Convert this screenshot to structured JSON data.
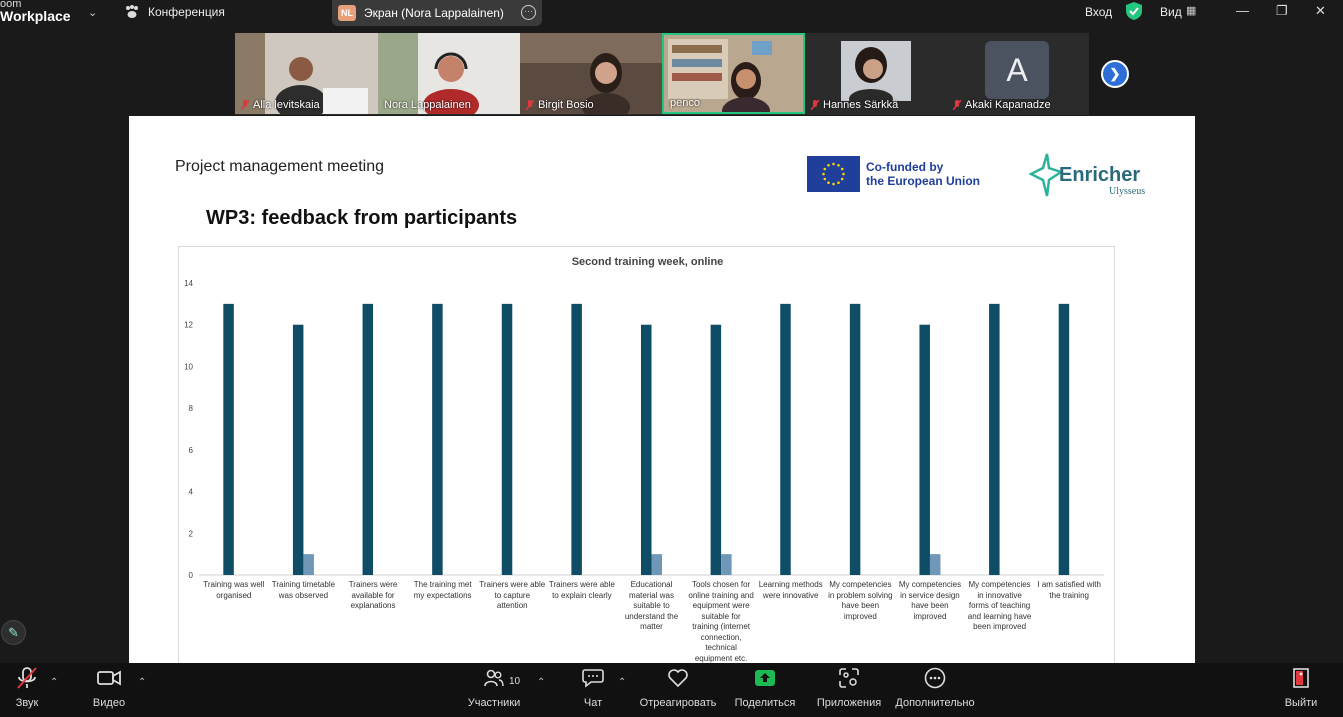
{
  "app": {
    "brand_line1": "oom",
    "brand_line2": "Workplace"
  },
  "topbar": {
    "meeting_label": "Конференция",
    "share_badge": "NL",
    "share_label": "Экран (Nora Lappalainen)",
    "login_label": "Вход",
    "view_label": "Вид"
  },
  "gallery": {
    "participants": [
      {
        "name": "Alla levitskaia",
        "muted": true
      },
      {
        "name": "Nora Lappalainen",
        "muted": false
      },
      {
        "name": "Birgit Bosio",
        "muted": true
      },
      {
        "name": "penco",
        "muted": false,
        "active": true
      },
      {
        "name": "Hannes Särkkä",
        "muted": true
      },
      {
        "name": "Akaki Kapanadze",
        "muted": true,
        "avatar_letter": "A"
      }
    ]
  },
  "slide": {
    "subtitle": "Project management meeting",
    "eu_line1": "Co-funded by",
    "eu_line2": "the European Union",
    "enricher_word": "Enricher",
    "enricher_sub": "Ulysseus",
    "title": "WP3: feedback from participants"
  },
  "chart_data": {
    "type": "bar",
    "title": "Second training week, online",
    "ylim": [
      0,
      14
    ],
    "yticks": [
      "0",
      "2",
      "4",
      "6",
      "8",
      "10",
      "12",
      "14"
    ],
    "categories": [
      "Training was well organised",
      "Training timetable was observed",
      "Trainers were available for explanations",
      "The training met my expectations",
      "Trainers were able to capture attention",
      "Trainers were able to explain clearly",
      "Educational material was suitable to understand the matter",
      "Tools chosen for online training and equipment were suitable for training (internet connection, technical equipment etc.",
      "Learning methods were innovative",
      "My competencies in problem solving have been improved",
      "My competencies in service design have been improved",
      "My competencies in innovative forms of teaching and learning have been improved",
      "I am satisfied with the training"
    ],
    "series": [
      {
        "values": [
          13,
          12,
          13,
          13,
          13,
          13,
          12,
          12,
          13,
          13,
          12,
          13,
          13
        ],
        "color": "#0f4c66"
      },
      {
        "values": [
          0,
          1,
          0,
          0,
          0,
          0,
          1,
          1,
          0,
          0,
          1,
          0,
          0
        ],
        "color": "#6f97b7"
      }
    ],
    "grid": false,
    "legend": "none"
  },
  "toolbar": {
    "audio_label": "Звук",
    "video_label": "Видео",
    "participants_label": "Участники",
    "participants_count": "10",
    "chat_label": "Чат",
    "react_label": "Отреагировать",
    "share_label": "Поделиться",
    "apps_label": "Приложения",
    "more_label": "Дополнительно",
    "leave_label": "Выйти"
  },
  "colors": {
    "accent_green": "#23c57f",
    "share_green": "#1db954",
    "leave_red": "#e0383e",
    "next_blue": "#2d6fd6"
  }
}
